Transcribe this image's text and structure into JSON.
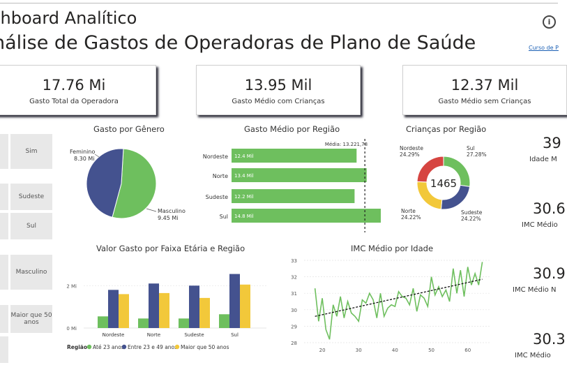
{
  "header": {
    "title": "shboard Analítico",
    "subtitle": "nálise de Gastos de Operadoras de Plano de Saúde",
    "info_icon": "info-icon",
    "course_link": "Curso de P"
  },
  "kpis": [
    {
      "value": "17.76 Mi",
      "label": "Gasto Total da Operadora"
    },
    {
      "value": "13.95 Mil",
      "label": "Gasto Médio com Crianças"
    },
    {
      "value": "12.37 Mil",
      "label": "Gasto Médio sem Crianças"
    }
  ],
  "slicers": [
    {
      "label": "Sim"
    },
    {
      "label": "Sudeste"
    },
    {
      "label": "Sul"
    },
    {
      "label": "Masculino"
    },
    {
      "label": "Maior que 50 anos"
    }
  ],
  "side_kpis": [
    {
      "value": "39",
      "label": "Idade M"
    },
    {
      "value": "30.6",
      "label": "IMC Médio"
    },
    {
      "value": "30.9",
      "label": "IMC Médio N"
    },
    {
      "value": "30.3",
      "label": "IMC Médio"
    }
  ],
  "colors": {
    "green": "#6ebf5e",
    "blue": "#44528f",
    "yellow": "#f2c83a",
    "red": "#d64541"
  },
  "chart_data": [
    {
      "type": "pie",
      "title": "Gasto por Gênero",
      "slices": [
        {
          "name": "Feminino",
          "value": 8.3,
          "label": "8.30 Mi",
          "color": "#44528f"
        },
        {
          "name": "Masculino",
          "value": 9.45,
          "label": "9.45 Mi",
          "color": "#6ebf5e"
        }
      ]
    },
    {
      "type": "bar",
      "title": "Gasto Médio por Região",
      "orientation": "horizontal",
      "categories": [
        "Nordeste",
        "Norte",
        "Sudeste",
        "Sul"
      ],
      "values": [
        12.4,
        13.4,
        12.2,
        14.8
      ],
      "data_labels": [
        "12.4 Mil",
        "13.4 Mil",
        "12.2 Mil",
        "14.8 Mil"
      ],
      "reference_line": {
        "label": "Média: 13.221,78",
        "value": 13.22
      }
    },
    {
      "type": "pie",
      "title": "Crianças por Região",
      "donut": true,
      "center_label": "1465",
      "slices": [
        {
          "name": "Sul",
          "value": 27.28,
          "label": "27.28%",
          "color": "#6ebf5e"
        },
        {
          "name": "Sudeste",
          "value": 24.22,
          "label": "24.22%",
          "color": "#44528f"
        },
        {
          "name": "Norte",
          "value": 24.22,
          "label": "24.22%",
          "color": "#f2c83a"
        },
        {
          "name": "Nordeste",
          "value": 24.29,
          "label": "24.29%",
          "color": "#d64541"
        }
      ]
    },
    {
      "type": "bar",
      "title": "Valor Gasto por Faixa Etária e Região",
      "categories": [
        "Nordeste",
        "Norte",
        "Sudeste",
        "Sul"
      ],
      "yticks": [
        "0 Mi",
        "2 Mi"
      ],
      "ylim": [
        0,
        2.7
      ],
      "legend_title": "Região",
      "legend_position": "bottom",
      "series": [
        {
          "name": "Até 23 anos",
          "color": "#6ebf5e",
          "values": [
            0.55,
            0.45,
            0.45,
            0.65
          ]
        },
        {
          "name": "Entre 23 e 49 anos",
          "color": "#44528f",
          "values": [
            1.8,
            2.1,
            2.0,
            2.55
          ]
        },
        {
          "name": "Maior que 50 anos",
          "color": "#f2c83a",
          "values": [
            1.6,
            1.65,
            1.42,
            2.05
          ]
        }
      ]
    },
    {
      "type": "line",
      "title": "IMC Médio por Idade",
      "xlim": [
        15,
        66
      ],
      "ylim": [
        28,
        33
      ],
      "xticks": [
        20,
        30,
        40,
        50,
        60
      ],
      "yticks": [
        28,
        29,
        30,
        31,
        32,
        33
      ],
      "grid": true,
      "trendline": {
        "x": [
          18,
          64
        ],
        "y": [
          29.6,
          31.85
        ]
      },
      "x": [
        18,
        19,
        20,
        21,
        22,
        23,
        24,
        25,
        26,
        27,
        28,
        29,
        30,
        31,
        32,
        33,
        34,
        35,
        36,
        37,
        38,
        39,
        40,
        41,
        42,
        43,
        44,
        45,
        46,
        47,
        48,
        49,
        50,
        51,
        52,
        53,
        54,
        55,
        56,
        57,
        58,
        59,
        60,
        61,
        62,
        63,
        64
      ],
      "y": [
        31.3,
        29.3,
        30.7,
        28.8,
        28.2,
        30.3,
        29.6,
        30.8,
        29.5,
        30.5,
        29.8,
        29.6,
        29.3,
        30.6,
        30.4,
        31.0,
        30.6,
        29.5,
        31.0,
        29.6,
        30.1,
        30.3,
        30.2,
        31.1,
        30.8,
        30.7,
        30.3,
        31.3,
        29.9,
        30.9,
        30.7,
        30.2,
        32.0,
        30.9,
        31.4,
        30.8,
        31.2,
        30.5,
        32.5,
        31.0,
        32.4,
        30.8,
        32.6,
        31.5,
        32.2,
        31.5,
        32.9
      ]
    }
  ]
}
